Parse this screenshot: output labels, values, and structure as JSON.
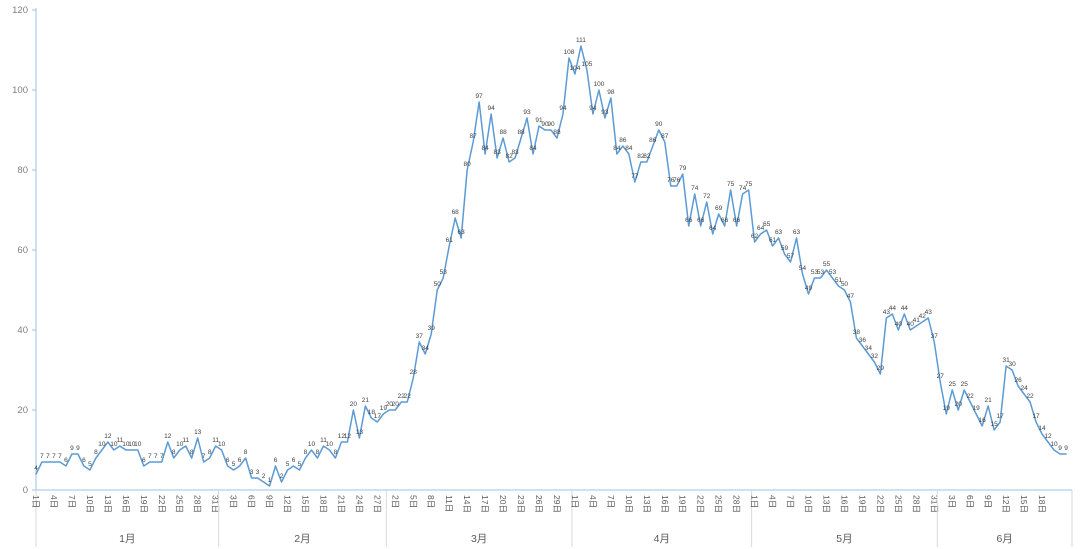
{
  "chart_data": {
    "type": "line",
    "title": "",
    "legend": "none",
    "gridlines": "none",
    "y_axis": {
      "min": 0,
      "max": 120,
      "step": 20,
      "tick_labels": [
        "0",
        "20",
        "40",
        "60",
        "80",
        "100",
        "120"
      ]
    },
    "x_axis": {
      "day_suffix": "日",
      "months": [
        {
          "label": "1月",
          "days": 31,
          "ticks": [
            "1日",
            "4日",
            "7日",
            "10日",
            "13日",
            "16日",
            "19日",
            "22日",
            "25日",
            "28日",
            "31日"
          ]
        },
        {
          "label": "2月",
          "days": 28,
          "ticks": [
            "3日",
            "6日",
            "9日",
            "12日",
            "15日",
            "18日",
            "21日",
            "24日",
            "27日"
          ]
        },
        {
          "label": "3月",
          "days": 31,
          "ticks": [
            "2日",
            "5日",
            "8日",
            "11日",
            "14日",
            "17日",
            "20日",
            "23日",
            "26日",
            "29日"
          ]
        },
        {
          "label": "4月",
          "days": 30,
          "ticks": [
            "1日",
            "4日",
            "7日",
            "10日",
            "13日",
            "16日",
            "19日",
            "22日",
            "25日",
            "28日"
          ]
        },
        {
          "label": "5月",
          "days": 31,
          "ticks": [
            "1日",
            "4日",
            "7日",
            "10日",
            "13日",
            "16日",
            "19日",
            "22日",
            "25日",
            "28日",
            "31日"
          ]
        },
        {
          "label": "6月",
          "days": 22,
          "ticks": [
            "3日",
            "6日",
            "9日",
            "12日",
            "15日",
            "18日"
          ]
        }
      ]
    },
    "series": [
      {
        "name": "daily-values",
        "color": "#5B9BD5",
        "values": [
          4,
          7,
          7,
          7,
          7,
          6,
          9,
          9,
          6,
          5,
          8,
          10,
          12,
          10,
          11,
          10,
          10,
          10,
          6,
          7,
          7,
          7,
          12,
          8,
          10,
          11,
          8,
          13,
          7,
          8,
          11,
          10,
          6,
          5,
          6,
          8,
          3,
          3,
          2,
          1,
          6,
          2,
          5,
          6,
          5,
          8,
          10,
          8,
          11,
          10,
          8,
          12,
          12,
          20,
          13,
          21,
          18,
          17,
          19,
          20,
          20,
          22,
          22,
          28,
          37,
          34,
          39,
          50,
          53,
          61,
          68,
          63,
          80,
          87,
          97,
          84,
          94,
          83,
          88,
          82,
          83,
          88,
          93,
          84,
          91,
          90,
          90,
          88,
          94,
          108,
          104,
          111,
          105,
          94,
          100,
          93,
          98,
          84,
          86,
          84,
          77,
          82,
          82,
          86,
          90,
          87,
          76,
          76,
          79,
          66,
          74,
          66,
          72,
          64,
          69,
          66,
          75,
          66,
          74,
          75,
          62,
          64,
          65,
          61,
          63,
          59,
          57,
          63,
          54,
          49,
          53,
          53,
          55,
          53,
          51,
          50,
          47,
          38,
          36,
          34,
          32,
          29,
          43,
          44,
          40,
          44,
          40,
          41,
          42,
          43,
          37,
          27,
          19,
          25,
          20,
          25,
          22,
          19,
          16,
          21,
          15,
          17,
          31,
          30,
          26,
          24,
          22,
          17,
          14,
          12,
          10,
          9,
          9
        ]
      }
    ],
    "data_labels": {
      "visible": true,
      "color": "#404040"
    },
    "colors": {
      "axis_line": "#9DC3E6",
      "separator": "#D9D9D9",
      "y_tick_text": "#7F7F7F",
      "x_tick_text": "#595959",
      "month_text": "#595959",
      "background": "#FFFFFF"
    }
  }
}
